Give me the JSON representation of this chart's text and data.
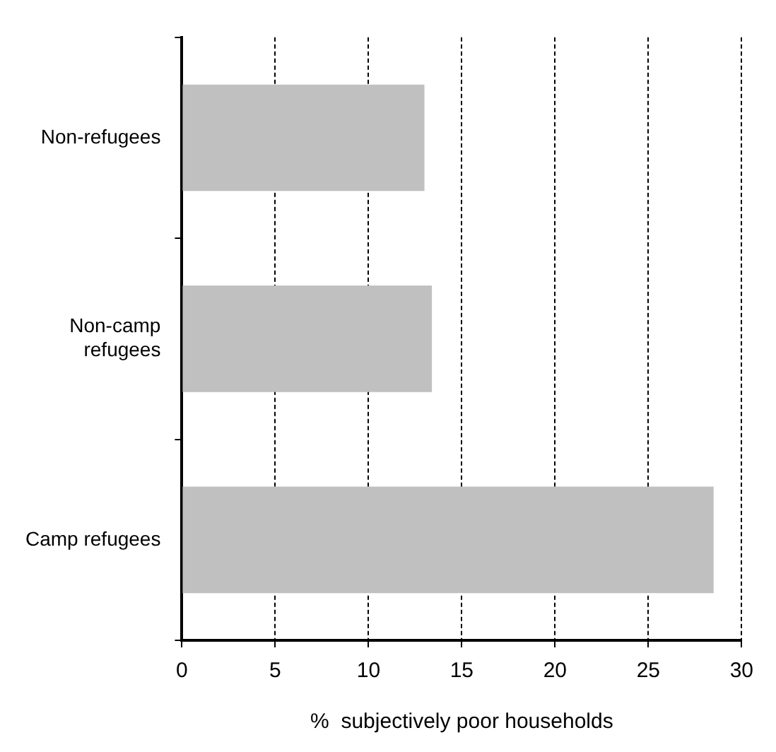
{
  "chart_data": {
    "type": "bar",
    "orientation": "horizontal",
    "xlabel": "%  subjectively poor households",
    "categories": [
      "Non-refugees",
      "Non-camp refugees",
      "Camp refugees"
    ],
    "values": [
      13.0,
      13.4,
      28.5
    ],
    "color": "#c0c0c0",
    "xlim": [
      0,
      30
    ],
    "xticks": [
      0,
      5,
      10,
      15,
      20,
      25,
      30
    ],
    "grid": "x",
    "legend": false
  }
}
